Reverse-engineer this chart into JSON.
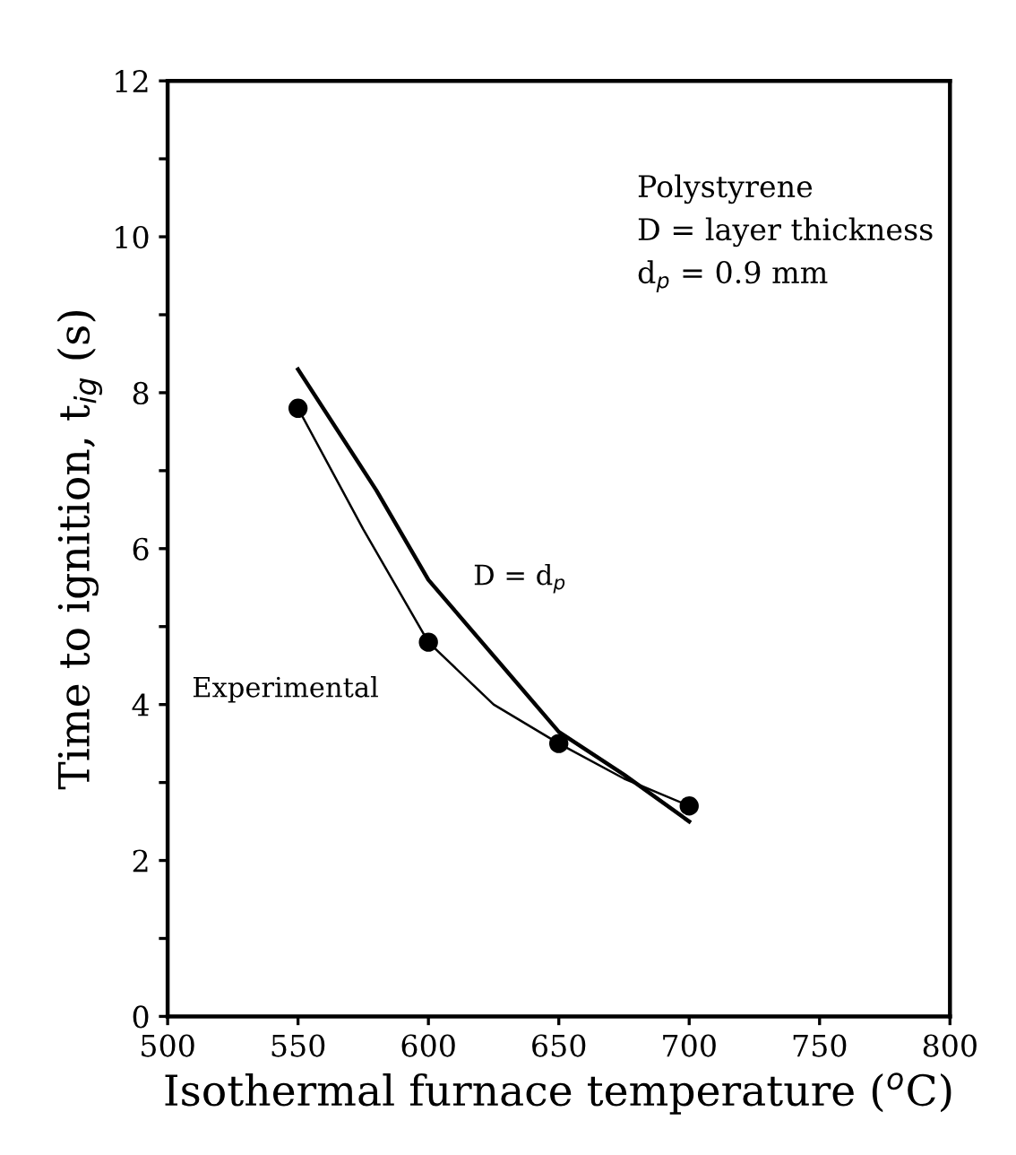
{
  "chart_data": {
    "type": "line",
    "xlabel": "Isothermal furnace temperature ($^{o}$C)",
    "ylabel": "Time to ignition, t$_{ig}$ (s)",
    "xlim": [
      500,
      800
    ],
    "xticks": [
      500,
      550,
      600,
      650,
      700,
      750,
      800
    ],
    "ylim": [
      0,
      12
    ],
    "yticks": [
      0,
      {
        "value": 1,
        "label": null
      },
      2,
      {
        "value": 3,
        "label": null
      },
      4,
      {
        "value": 5,
        "label": null
      },
      6,
      {
        "value": 7,
        "label": null
      },
      8,
      {
        "value": 9,
        "label": null
      },
      10,
      {
        "value": 11,
        "label": null
      },
      12
    ],
    "series": [
      {
        "name": "D = d$_{p}$",
        "color": "#000000",
        "x": [
          550,
          580,
          600,
          650,
          675,
          700
        ],
        "values": [
          8.3,
          6.75,
          5.6,
          3.65,
          3.1,
          2.5
        ]
      },
      {
        "name": "Experimental",
        "color": "#000000",
        "x": [
          550,
          575,
          600,
          625,
          650,
          675,
          700
        ],
        "values": [
          7.8,
          6.25,
          4.8,
          4.0,
          3.5,
          3.05,
          2.7
        ]
      },
      {
        "type": "scatter",
        "color": "#000000",
        "marker": "circle",
        "x": [
          550,
          600,
          650,
          700
        ],
        "values": [
          7.8,
          4.8,
          3.5,
          2.7
        ]
      }
    ],
    "annotations": [
      "Polystyrene\nD = layer thickness\nd$_{p}$ = 0.9 mm"
    ],
    "grid": false,
    "legend": false
  }
}
